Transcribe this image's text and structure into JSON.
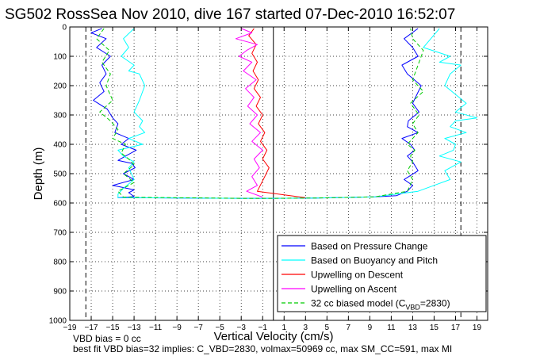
{
  "chart_data": {
    "type": "line",
    "title": "SG502 RossSea Nov 2010, dive 167 started 07-Dec-2010 16:52:07",
    "xlabel": "Vertical Velocity (cm/s)",
    "ylabel": "Depth (m)",
    "xlim": [
      -19,
      20
    ],
    "ylim": [
      1000,
      0
    ],
    "y_reversed": true,
    "grid": true,
    "x_ticks": [
      -19,
      -17,
      -15,
      -13,
      -11,
      -9,
      -7,
      -5,
      -3,
      -1,
      1,
      3,
      5,
      7,
      9,
      11,
      13,
      15,
      17,
      19
    ],
    "y_ticks": [
      0,
      100,
      200,
      300,
      400,
      500,
      600,
      700,
      800,
      900,
      1000
    ],
    "vertical_lines": [
      {
        "x": -17.5,
        "style": "dashed",
        "color": "#000000"
      },
      {
        "x": 0,
        "style": "solid",
        "color": "#000000"
      },
      {
        "x": 17.5,
        "style": "dashed",
        "color": "#000000"
      }
    ],
    "legend_position": "bottom-right",
    "series": [
      {
        "name": "Based on Pressure Change",
        "color": "#0000ff",
        "style": "solid",
        "x": [
          -16.0,
          -17.0,
          -15.6,
          -16.5,
          -15.2,
          -16.0,
          -15.6,
          -16.2,
          -15.8,
          -16.8,
          -15.5,
          -15.0,
          -14.5,
          -14.8,
          -13.5,
          -14.2,
          -12.8,
          -13.8,
          -14.5,
          -13.2,
          -12.9,
          -14.0,
          -13.0,
          -15.0,
          -13.0,
          -13.5,
          -13.0,
          -13.6,
          -14.5,
          -3.0,
          0.0,
          4.0,
          9.5,
          11.5,
          12.5,
          13.0,
          12.2,
          13.5,
          13.0,
          12.5,
          13.2,
          12.8,
          12.0,
          13.5,
          12.5,
          12.6,
          13.6,
          13.0,
          13.4,
          13.8,
          12.5,
          12.0,
          13.5,
          13.0,
          12.2,
          13.5
        ],
        "y": [
          5,
          20,
          40,
          70,
          100,
          130,
          160,
          190,
          220,
          250,
          280,
          310,
          330,
          360,
          380,
          400,
          420,
          440,
          455,
          465,
          480,
          500,
          520,
          540,
          555,
          565,
          578,
          580,
          582,
          584,
          584,
          583,
          579,
          575,
          560,
          540,
          520,
          490,
          460,
          440,
          420,
          400,
          380,
          360,
          340,
          320,
          290,
          260,
          230,
          200,
          160,
          130,
          100,
          70,
          40,
          5
        ]
      },
      {
        "name": "Based on Buoyancy and Pitch",
        "color": "#00ffff",
        "style": "solid",
        "x": [
          -13.0,
          -14.0,
          -13.5,
          -14.2,
          -13.0,
          -13.5,
          -12.5,
          -12.0,
          -12.5,
          -13.0,
          -12.2,
          -12.5,
          -12.0,
          -13.5,
          -12.2,
          -14.5,
          -14.0,
          -13.0,
          -13.5,
          -13.0,
          -14.0,
          -14.5,
          -14.5,
          -3.0,
          0.0,
          4.0,
          9.5,
          13.5,
          15.0,
          16.5,
          16.0,
          17.5,
          15.5,
          16.8,
          17.0,
          16.0,
          18.0,
          16.5,
          17.0,
          19.0,
          17.0,
          18.0,
          17.0,
          16.0,
          16.5,
          17.5,
          15.5,
          16.5,
          14.0,
          15.5
        ],
        "y": [
          5,
          40,
          70,
          100,
          130,
          150,
          160,
          200,
          250,
          290,
          320,
          340,
          360,
          380,
          400,
          420,
          440,
          460,
          480,
          520,
          550,
          570,
          582,
          584,
          584,
          583,
          579,
          560,
          540,
          520,
          490,
          460,
          440,
          420,
          400,
          380,
          360,
          340,
          320,
          310,
          290,
          260,
          230,
          200,
          160,
          130,
          120,
          100,
          70,
          5
        ]
      },
      {
        "name": "Upwelling on Descent",
        "color": "#ff0000",
        "style": "solid",
        "x": [
          -1.8,
          -2.3,
          -1.6,
          -2.0,
          -1.5,
          -1.9,
          -1.4,
          -1.8,
          -1.2,
          -1.6,
          -1.0,
          -1.4,
          -0.8,
          -1.2,
          -0.6,
          -1.0,
          -0.4,
          -0.8,
          -1.5,
          3.0
        ],
        "y": [
          5,
          30,
          60,
          90,
          120,
          150,
          180,
          210,
          240,
          270,
          300,
          330,
          360,
          390,
          420,
          450,
          480,
          510,
          560,
          582
        ]
      },
      {
        "name": "Upwelling on Ascent",
        "color": "#ff00ff",
        "style": "solid",
        "x": [
          -3.0,
          -2.0,
          -3.5,
          -1.5,
          -2.5,
          -3.2,
          -2.0,
          -2.8,
          -1.6,
          -2.6,
          -1.8,
          -2.4,
          -1.5,
          -2.2,
          -1.2,
          -2.0,
          -1.0,
          -1.8,
          -1.3,
          -2.0,
          -1.5,
          -2.5,
          -1.0
        ],
        "y": [
          5,
          20,
          40,
          60,
          80,
          100,
          120,
          150,
          180,
          210,
          240,
          270,
          300,
          330,
          360,
          390,
          420,
          450,
          480,
          510,
          540,
          560,
          580
        ]
      },
      {
        "name": "32 cc biased model (C_VBD=2830)",
        "color": "#00cc00",
        "style": "dashed",
        "x": [
          -15.8,
          -16.5,
          -15.3,
          -16.0,
          -15.2,
          -15.6,
          -15.0,
          -16.2,
          -15.2,
          -14.5,
          -15.0,
          -13.8,
          -14.2,
          -13.5,
          -13.0,
          -14.0,
          -13.0,
          -14.5,
          -14.0,
          -3.0,
          0.0,
          4.0,
          9.5,
          12.5,
          13.0,
          12.5,
          13.0,
          12.8,
          13.2,
          12.5,
          13.5,
          13.0,
          13.6,
          12.8,
          14.0,
          13.0,
          13.5,
          14.0,
          13.0,
          12.8
        ],
        "y": [
          5,
          40,
          80,
          120,
          160,
          200,
          250,
          290,
          320,
          350,
          380,
          400,
          430,
          450,
          470,
          500,
          530,
          560,
          580,
          584,
          584,
          583,
          579,
          560,
          520,
          490,
          460,
          440,
          420,
          400,
          360,
          330,
          300,
          260,
          220,
          180,
          130,
          80,
          40,
          5
        ]
      }
    ]
  },
  "legend_labels": {
    "last_main": "32 cc biased model (C",
    "last_sub": "VBD",
    "last_tail": "=2830)"
  },
  "footer": {
    "line1": "VBD bias = 0 cc",
    "line2": "best fit VBD bias=32 implies: C_VBD=2830, volmax=50969 cc, max SM_CC=591, max MI"
  }
}
